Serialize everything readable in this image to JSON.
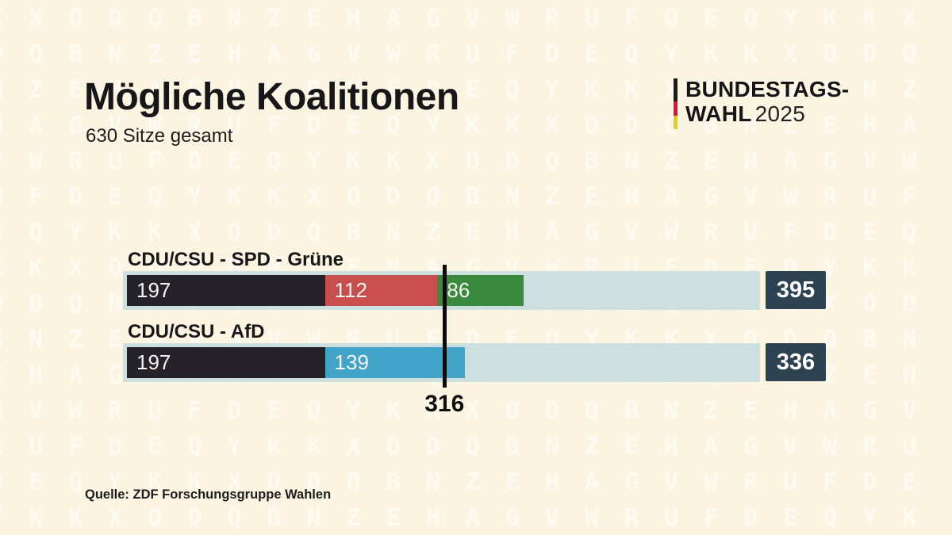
{
  "header": {
    "title": "Mögliche Koalitionen",
    "subtitle": "630 Sitze gesamt",
    "logo": {
      "line1": "BUNDESTAGS-",
      "line2": "WAHL",
      "year": "2025",
      "flag_colors": [
        "#1b1b1d",
        "#e2113c",
        "#e6ce13"
      ]
    }
  },
  "footer": {
    "source": "Quelle: ZDF Forschungsgruppe Wahlen"
  },
  "background": {
    "color": "#faf4e1",
    "pattern_glyphs": "KXODQBNZEHAGVWRUFDEQYK"
  },
  "chart_data": {
    "type": "bar",
    "title": "Mögliche Koalitionen",
    "subtitle": "630 Sitze gesamt",
    "total_seats": 630,
    "majority": {
      "seats": 316,
      "label": "316"
    },
    "track_color": "#cde0e0",
    "total_box_color": "#2c4251",
    "coalitions": [
      {
        "label": "CDU/CSU - SPD - Grüne",
        "total": 395,
        "segments": [
          {
            "party": "CDU/CSU",
            "seats": 197,
            "color": "#252229"
          },
          {
            "party": "SPD",
            "seats": 112,
            "color": "#c94f4f"
          },
          {
            "party": "Grüne",
            "seats": 86,
            "color": "#3a8a3e"
          }
        ]
      },
      {
        "label": "CDU/CSU - AfD",
        "total": 336,
        "segments": [
          {
            "party": "CDU/CSU",
            "seats": 197,
            "color": "#252229"
          },
          {
            "party": "AfD",
            "seats": 139,
            "color": "#42a4c8"
          }
        ]
      }
    ]
  }
}
